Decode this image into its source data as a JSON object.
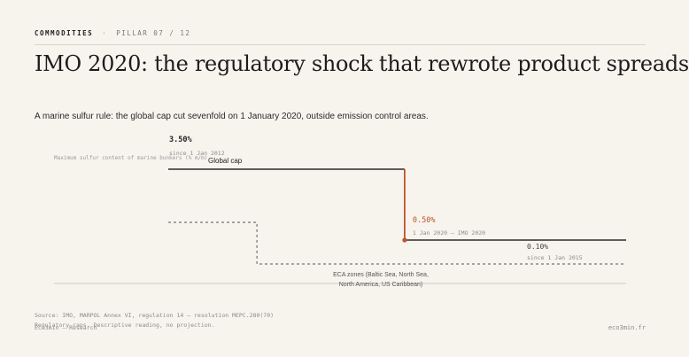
{
  "header": {
    "category": "COMMODITIES",
    "separator": "·",
    "pillar": "PILLAR 07 / 12"
  },
  "title": "IMO 2020: the regulatory shock that rewrote product spreads",
  "subtitle": "A marine sulfur rule: the global cap cut sevenfold on 1 January 2020, outside emission control areas.",
  "chart_data": {
    "type": "line",
    "step": true,
    "ylabel": "Maximum sulfur content of marine bunkers (% m/m)",
    "ylim": [
      0,
      3.5
    ],
    "x_range": [
      "2012-01-01",
      "2027-07-01"
    ],
    "series": [
      {
        "name": "Global cap",
        "style": "solid",
        "color": "#2b2b2b",
        "points": [
          {
            "date": "2012-01-01",
            "value": 3.5
          },
          {
            "date": "2020-01-01",
            "value": 0.5
          },
          {
            "date": "2027-07-01",
            "value": 0.5
          }
        ]
      },
      {
        "name": "ECA zones (Baltic Sea, North Sea, North America, US Caribbean)",
        "style": "dashed",
        "color": "#555555",
        "points": [
          {
            "date": "2012-01-01",
            "value": 1.0
          },
          {
            "date": "2015-01-01",
            "value": 0.1
          },
          {
            "date": "2027-07-01",
            "value": 0.1
          }
        ]
      }
    ],
    "shock": {
      "date": "2020-01-01",
      "from": 3.5,
      "to": 0.5,
      "color": "#c0532b"
    },
    "annotations": {
      "global_value": "3.50%",
      "global_since": "since 1 Jan 2012",
      "global_label": "Global cap",
      "shock_value": "0.50%",
      "shock_since": "1 Jan 2020 — IMO 2020",
      "eca_value": "0.10%",
      "eca_since": "since 1 Jan 2015",
      "eca_label_lines": [
        "ECA zones (Baltic Sea, North Sea,",
        "North America, US Caribbean)"
      ]
    },
    "colors": {
      "accent": "#c0532b",
      "ink": "#2b2b2b",
      "muted": "#8a8a8a"
    }
  },
  "footer": {
    "source": "Source: IMO, MARPOL Annex VI, regulation 14 — resolution MEPC.280(70)",
    "note": "Regulatory caps. Descriptive reading, no projection.",
    "brand_left": "Eco3min — Research",
    "brand_right": "eco3min.fr"
  }
}
